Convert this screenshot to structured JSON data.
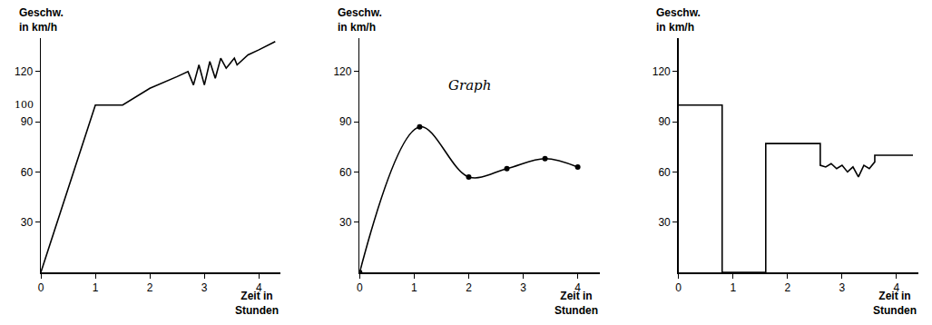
{
  "chart_data": [
    {
      "type": "line",
      "x_label": "Zeit in Stunden",
      "y_label": "Geschw. in km/h",
      "x": [
        0,
        1,
        1.5,
        2,
        2.5,
        2.7,
        2.8,
        2.9,
        3.0,
        3.1,
        3.2,
        3.3,
        3.4,
        3.55,
        3.6,
        3.8,
        4.0,
        4.3
      ],
      "values": [
        0,
        100,
        100,
        110,
        117,
        120,
        112,
        124,
        112,
        126,
        116,
        128,
        122,
        128,
        124,
        130,
        133,
        138
      ],
      "color": "#000000",
      "line_style": "solid",
      "grid": false,
      "xlim": [
        0,
        4.4
      ],
      "ylim": [
        0,
        140
      ],
      "xticks": [
        0,
        1,
        2,
        3,
        4
      ],
      "yticks": [
        30,
        60,
        90,
        120
      ],
      "annotations": [
        {
          "text": "100",
          "y": 100
        }
      ]
    },
    {
      "type": "line",
      "x_label": "Zeit in Stunden",
      "y_label": "Geschw. in km/h",
      "x": [
        0,
        1.1,
        2,
        2.7,
        3.4,
        4
      ],
      "values": [
        0,
        87,
        57,
        62,
        68,
        63
      ],
      "color": "#000000",
      "line_style": "spline",
      "marker": "circle",
      "grid": false,
      "xlim": [
        0,
        4.4
      ],
      "ylim": [
        0,
        140
      ],
      "xticks": [
        0,
        1,
        2,
        3,
        4
      ],
      "yticks": [
        30,
        60,
        90,
        120
      ],
      "annotations": [
        {
          "text": "Graph",
          "x": 1.6,
          "y": 112
        }
      ]
    },
    {
      "type": "line",
      "x_label": "Zeit in Stunden",
      "y_label": "Geschw. in km/h",
      "x": [
        0,
        0.8,
        0.8,
        1.6,
        1.6,
        2.6,
        2.6,
        2.7,
        2.8,
        2.9,
        3.0,
        3.1,
        3.2,
        3.3,
        3.4,
        3.5,
        3.6,
        3.6,
        4.3
      ],
      "values": [
        100,
        100,
        0,
        0,
        77,
        77,
        64,
        63,
        65,
        62,
        64,
        60,
        63,
        57,
        64,
        62,
        66,
        70,
        70
      ],
      "color": "#000000",
      "line_style": "solid",
      "grid": false,
      "xlim": [
        0,
        4.4
      ],
      "ylim": [
        0,
        140
      ],
      "xticks": [
        0,
        1,
        2,
        3,
        4
      ],
      "yticks": [
        30,
        60,
        90,
        120
      ]
    }
  ]
}
